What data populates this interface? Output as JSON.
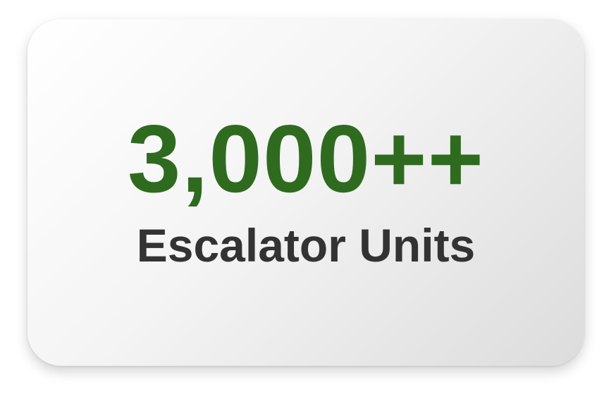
{
  "stat_card": {
    "value": "3,000++",
    "label": "Escalator Units"
  },
  "colors": {
    "value_text": "#2f6b1f",
    "label_text": "#333333"
  }
}
